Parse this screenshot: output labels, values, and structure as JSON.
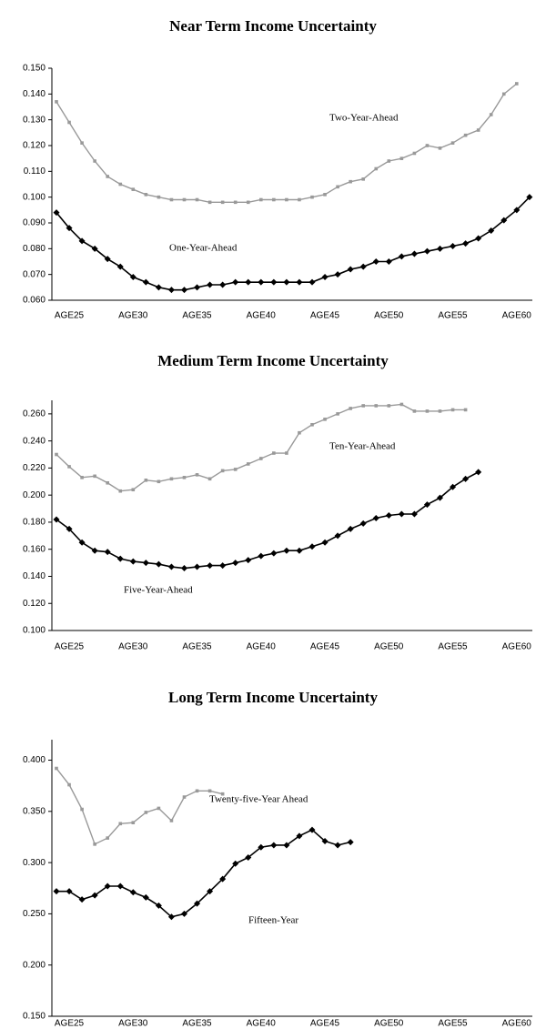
{
  "chart_data": [
    {
      "type": "line",
      "title": "Near Term Income Uncertainty",
      "categories": [
        "AGE25",
        null,
        null,
        null,
        null,
        "AGE30",
        null,
        null,
        null,
        null,
        "AGE35",
        null,
        null,
        null,
        null,
        "AGE40",
        null,
        null,
        null,
        null,
        "AGE45",
        null,
        null,
        null,
        null,
        "AGE50",
        null,
        null,
        null,
        null,
        "AGE55",
        null,
        null,
        null,
        null,
        "AGE60",
        null,
        null
      ],
      "ylim": [
        0.06,
        0.15
      ],
      "yticks": [
        {
          "value": 0.06,
          "label": "0.060"
        },
        {
          "value": 0.07,
          "label": "0.070"
        },
        {
          "value": 0.08,
          "label": "0.080"
        },
        {
          "value": 0.09,
          "label": "0.090"
        },
        {
          "value": 0.1,
          "label": "0.100"
        },
        {
          "value": 0.11,
          "label": "0.110"
        },
        {
          "value": 0.12,
          "label": "0.120"
        },
        {
          "value": 0.13,
          "label": "0.130"
        },
        {
          "value": 0.14,
          "label": "0.140"
        },
        {
          "value": 0.15,
          "label": "0.150"
        }
      ],
      "series": [
        {
          "name": "One-Year-Ahead",
          "color": "#000000",
          "marker": "diamond",
          "values": [
            0.094,
            0.088,
            0.083,
            0.08,
            0.076,
            0.073,
            0.069,
            0.067,
            0.065,
            0.064,
            0.064,
            0.065,
            0.066,
            0.066,
            0.067,
            0.067,
            0.067,
            0.067,
            0.067,
            0.067,
            0.067,
            0.069,
            0.07,
            0.072,
            0.073,
            0.075,
            0.075,
            0.077,
            0.078,
            0.079,
            0.08,
            0.081,
            0.082,
            0.084,
            0.087,
            0.091,
            0.095,
            0.1
          ]
        },
        {
          "name": "Two-Year-Ahead",
          "color": "#999999",
          "marker": "square",
          "values": [
            0.137,
            0.129,
            0.121,
            0.114,
            0.108,
            0.105,
            0.103,
            0.101,
            0.1,
            0.099,
            0.099,
            0.099,
            0.098,
            0.098,
            0.098,
            0.098,
            0.099,
            0.099,
            0.099,
            0.099,
            0.1,
            0.101,
            0.104,
            0.106,
            0.107,
            0.111,
            0.114,
            0.115,
            0.117,
            0.12,
            0.119,
            0.121,
            0.124,
            0.126,
            0.132,
            0.14,
            0.144,
            null
          ]
        }
      ]
    },
    {
      "type": "line",
      "title": "Medium Term Income Uncertainty",
      "categories": [
        "AGE25",
        null,
        null,
        null,
        null,
        "AGE30",
        null,
        null,
        null,
        null,
        "AGE35",
        null,
        null,
        null,
        null,
        "AGE40",
        null,
        null,
        null,
        null,
        "AGE45",
        null,
        null,
        null,
        null,
        "AGE50",
        null,
        null,
        null,
        null,
        "AGE55",
        null,
        null,
        null,
        null,
        "AGE60",
        null,
        null
      ],
      "ylim": [
        0.1,
        0.27
      ],
      "yticks": [
        {
          "value": 0.1,
          "label": "0.100"
        },
        {
          "value": 0.12,
          "label": "0.120"
        },
        {
          "value": 0.14,
          "label": "0.140"
        },
        {
          "value": 0.16,
          "label": "0.160"
        },
        {
          "value": 0.18,
          "label": "0.180"
        },
        {
          "value": 0.2,
          "label": "0.200"
        },
        {
          "value": 0.22,
          "label": "0.220"
        },
        {
          "value": 0.24,
          "label": "0.240"
        },
        {
          "value": 0.26,
          "label": "0.260"
        }
      ],
      "series": [
        {
          "name": "Five-Year-Ahead",
          "color": "#000000",
          "marker": "diamond",
          "values": [
            0.182,
            0.175,
            0.165,
            0.159,
            0.158,
            0.153,
            0.151,
            0.15,
            0.149,
            0.147,
            0.146,
            0.147,
            0.148,
            0.148,
            0.15,
            0.152,
            0.155,
            0.157,
            0.159,
            0.159,
            0.162,
            0.165,
            0.17,
            0.175,
            0.179,
            0.183,
            0.185,
            0.186,
            0.186,
            0.193,
            0.198,
            0.206,
            0.212,
            0.217,
            null,
            null,
            null,
            null
          ]
        },
        {
          "name": "Ten-Year-Ahead",
          "color": "#999999",
          "marker": "square",
          "values": [
            0.23,
            0.221,
            0.213,
            0.214,
            0.209,
            0.203,
            0.204,
            0.211,
            0.21,
            0.212,
            0.213,
            0.215,
            0.212,
            0.218,
            0.219,
            0.223,
            0.227,
            0.231,
            0.231,
            0.246,
            0.252,
            0.256,
            0.26,
            0.264,
            0.266,
            0.266,
            0.266,
            0.267,
            0.262,
            0.262,
            0.262,
            0.263,
            0.263,
            null,
            null,
            null,
            null,
            null
          ]
        }
      ]
    },
    {
      "type": "line",
      "title": "Long Term Income Uncertainty",
      "categories": [
        "AGE25",
        null,
        null,
        null,
        null,
        "AGE30",
        null,
        null,
        null,
        null,
        "AGE35",
        null,
        null,
        null,
        null,
        "AGE40",
        null,
        null,
        null,
        null,
        "AGE45",
        null,
        null,
        null,
        null,
        "AGE50",
        null,
        null,
        null,
        null,
        "AGE55",
        null,
        null,
        null,
        null,
        "AGE60",
        null,
        null
      ],
      "ylim": [
        0.15,
        0.42
      ],
      "yticks": [
        {
          "value": 0.15,
          "label": "0.150"
        },
        {
          "value": 0.2,
          "label": "0.200"
        },
        {
          "value": 0.25,
          "label": "0.250"
        },
        {
          "value": 0.3,
          "label": "0.300"
        },
        {
          "value": 0.35,
          "label": "0.350"
        },
        {
          "value": 0.4,
          "label": "0.400"
        }
      ],
      "series": [
        {
          "name": "Fifteen-Year",
          "color": "#000000",
          "marker": "diamond",
          "values": [
            0.272,
            0.272,
            0.264,
            0.268,
            0.277,
            0.277,
            0.271,
            0.266,
            0.258,
            0.247,
            0.25,
            0.26,
            0.272,
            0.284,
            0.299,
            0.305,
            0.315,
            0.317,
            0.317,
            0.326,
            0.332,
            0.321,
            0.317,
            0.32,
            null,
            null,
            null,
            null,
            null,
            null,
            null,
            null,
            null,
            null,
            null,
            null,
            null,
            null
          ]
        },
        {
          "name": "Twenty-five-Year Ahead",
          "color": "#999999",
          "marker": "square",
          "values": [
            0.392,
            0.376,
            0.352,
            0.318,
            0.324,
            0.338,
            0.339,
            0.349,
            0.353,
            0.341,
            0.364,
            0.37,
            0.37,
            0.367,
            null,
            null,
            null,
            null,
            null,
            null,
            null,
            null,
            null,
            null,
            null,
            null,
            null,
            null,
            null,
            null,
            null,
            null,
            null,
            null,
            null,
            null,
            null,
            null
          ]
        }
      ]
    }
  ]
}
